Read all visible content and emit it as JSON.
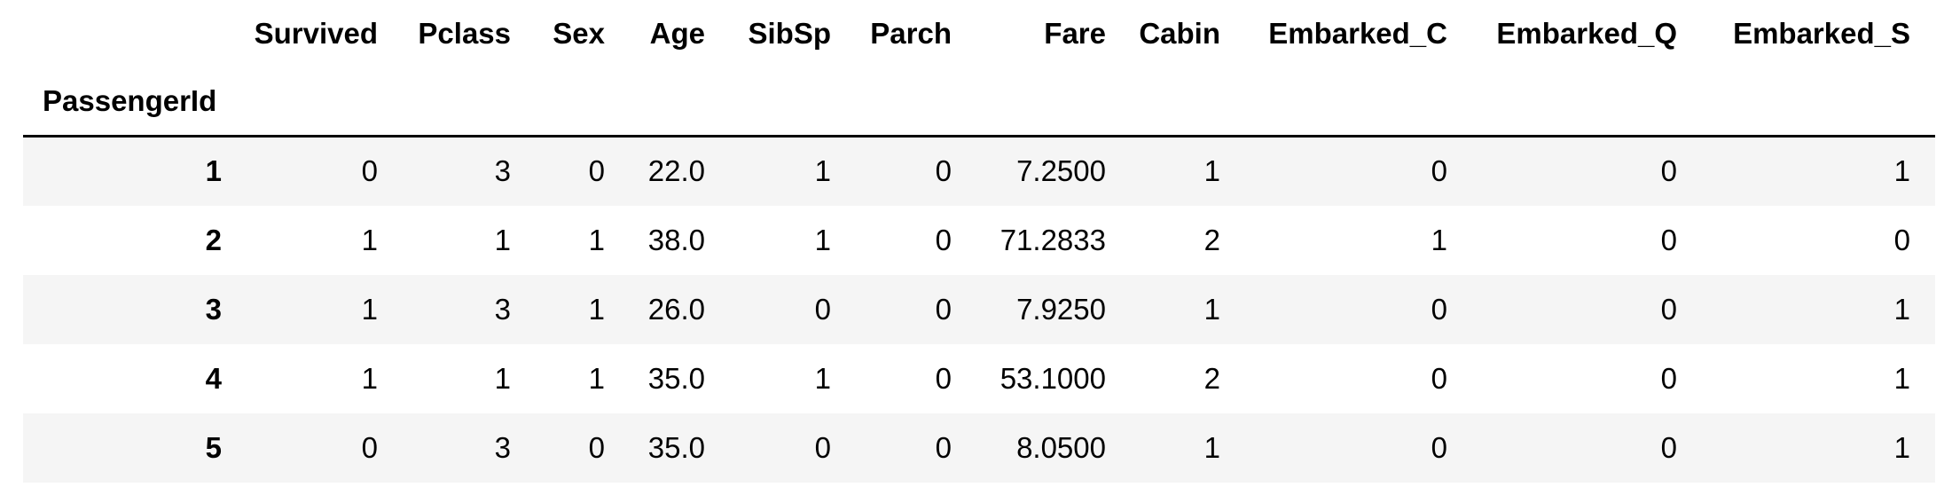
{
  "table": {
    "index_name": "PassengerId",
    "columns": [
      "Survived",
      "Pclass",
      "Sex",
      "Age",
      "SibSp",
      "Parch",
      "Fare",
      "Cabin",
      "Embarked_C",
      "Embarked_Q",
      "Embarked_S"
    ],
    "rows": [
      {
        "index": "1",
        "cells": [
          "0",
          "3",
          "0",
          "22.0",
          "1",
          "0",
          "7.2500",
          "1",
          "0",
          "0",
          "1"
        ]
      },
      {
        "index": "2",
        "cells": [
          "1",
          "1",
          "1",
          "38.0",
          "1",
          "0",
          "71.2833",
          "2",
          "1",
          "0",
          "0"
        ]
      },
      {
        "index": "3",
        "cells": [
          "1",
          "3",
          "1",
          "26.0",
          "0",
          "0",
          "7.9250",
          "1",
          "0",
          "0",
          "1"
        ]
      },
      {
        "index": "4",
        "cells": [
          "1",
          "1",
          "1",
          "35.0",
          "1",
          "0",
          "53.1000",
          "2",
          "0",
          "0",
          "1"
        ]
      },
      {
        "index": "5",
        "cells": [
          "0",
          "3",
          "0",
          "35.0",
          "0",
          "0",
          "8.0500",
          "1",
          "0",
          "0",
          "1"
        ]
      }
    ]
  }
}
